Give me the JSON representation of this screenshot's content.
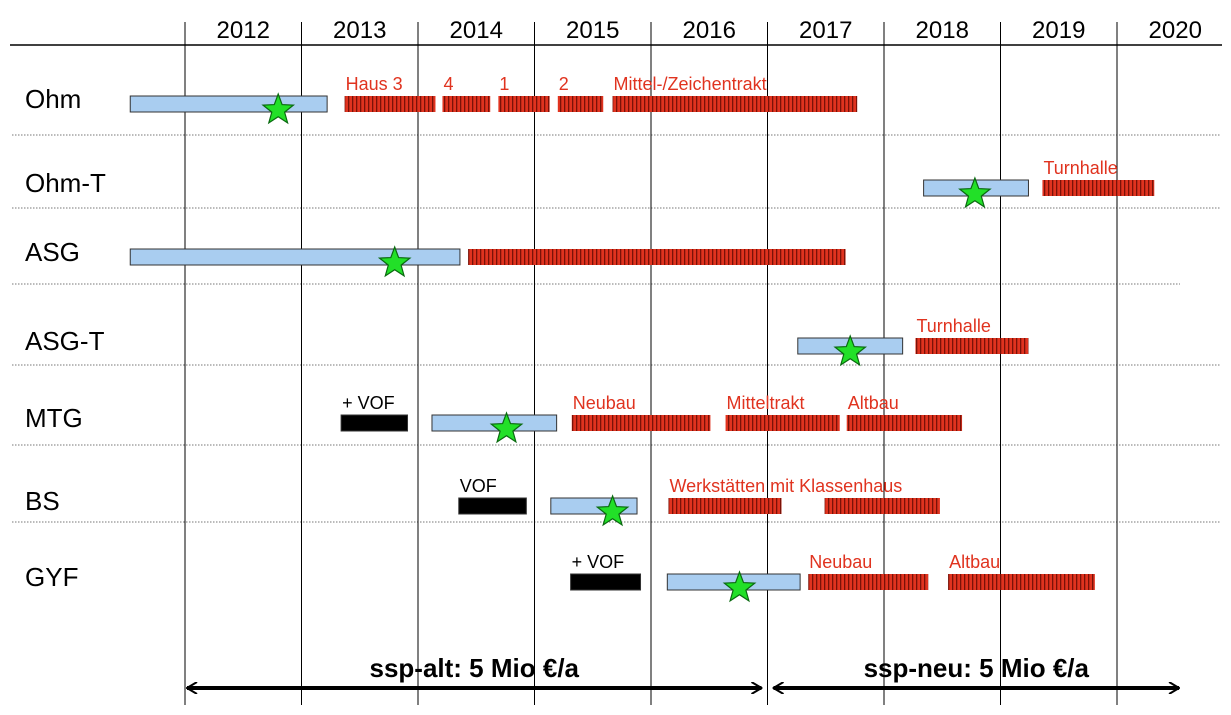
{
  "xlim": [
    2012,
    2020
  ],
  "years": [
    2012,
    2013,
    2014,
    2015,
    2016,
    2017,
    2018,
    2019,
    2020
  ],
  "rows": [
    {
      "label": "Ohm",
      "star": 2012.8,
      "bars": [
        {
          "start": 2011.53,
          "end": 2013.22,
          "color": "#a9cdf0"
        },
        {
          "start": 2013.37,
          "end": 2014.15,
          "color": "#e0331f",
          "hatched": true,
          "label": "Haus 3"
        },
        {
          "start": 2014.21,
          "end": 2014.62,
          "color": "#e0331f",
          "hatched": true,
          "label": "4"
        },
        {
          "start": 2014.69,
          "end": 2015.13,
          "color": "#e0331f",
          "hatched": true,
          "label": "1"
        },
        {
          "start": 2015.2,
          "end": 2015.59,
          "color": "#e0331f",
          "hatched": true,
          "label": "2"
        },
        {
          "start": 2015.67,
          "end": 2017.77,
          "color": "#e0331f",
          "hatched": true,
          "label": "Mittel-/Zeichentrakt"
        }
      ]
    },
    {
      "label": "Ohm-T",
      "star": 2018.78,
      "bars": [
        {
          "start": 2018.34,
          "end": 2019.24,
          "color": "#a9cdf0"
        },
        {
          "start": 2019.36,
          "end": 2020.32,
          "color": "#e0331f",
          "hatched": true,
          "label": "Turnhalle"
        }
      ]
    },
    {
      "label": "ASG",
      "star": 2013.8,
      "bars": [
        {
          "start": 2011.53,
          "end": 2014.36,
          "color": "#a9cdf0"
        },
        {
          "start": 2014.43,
          "end": 2017.67,
          "color": "#e0331f",
          "hatched": true
        }
      ]
    },
    {
      "label": "ASG-T",
      "star": 2017.71,
      "bars": [
        {
          "start": 2017.26,
          "end": 2018.16,
          "color": "#a9cdf0"
        },
        {
          "start": 2018.27,
          "end": 2019.24,
          "color": "#e0331f",
          "hatched": true,
          "label": "Turnhalle"
        }
      ]
    },
    {
      "label": "MTG",
      "star": 2014.76,
      "bars": [
        {
          "start": 2013.34,
          "end": 2013.91,
          "color": "#000000",
          "label": "+ VOF"
        },
        {
          "start": 2014.12,
          "end": 2015.19,
          "color": "#a9cdf0"
        },
        {
          "start": 2015.32,
          "end": 2016.51,
          "color": "#e0331f",
          "hatched": true,
          "label": "Neubau"
        },
        {
          "start": 2016.64,
          "end": 2017.62,
          "color": "#e0331f",
          "hatched": true,
          "label": "Mitteltrakt"
        },
        {
          "start": 2017.68,
          "end": 2018.67,
          "color": "#e0331f",
          "hatched": true,
          "label": "Altbau"
        }
      ]
    },
    {
      "label": "BS",
      "star": 2015.67,
      "bars": [
        {
          "start": 2014.35,
          "end": 2014.93,
          "color": "#000000",
          "label": "VOF"
        },
        {
          "start": 2015.14,
          "end": 2015.88,
          "color": "#a9cdf0"
        },
        {
          "start": 2016.15,
          "end": 2017.12,
          "color": "#e0331f",
          "hatched": true,
          "label": "Werkstätten mit Klassenhaus"
        },
        {
          "start": 2017.49,
          "end": 2018.48,
          "color": "#e0331f",
          "hatched": true
        }
      ]
    },
    {
      "label": "GYF",
      "star": 2016.76,
      "bars": [
        {
          "start": 2015.31,
          "end": 2015.91,
          "color": "#000000",
          "label": "+ VOF"
        },
        {
          "start": 2016.14,
          "end": 2017.28,
          "color": "#a9cdf0"
        },
        {
          "start": 2017.35,
          "end": 2018.38,
          "color": "#e0331f",
          "hatched": true,
          "label": "Neubau"
        },
        {
          "start": 2018.55,
          "end": 2019.81,
          "color": "#e0331f",
          "hatched": true,
          "label": "Altbau"
        }
      ]
    }
  ],
  "periods": [
    {
      "label": "ssp-alt: 5 Mio €/a",
      "start": 2012,
      "end": 2017
    },
    {
      "label": "ssp-neu: 5 Mio €/a",
      "start": 2017,
      "end": 2020.55
    }
  ]
}
